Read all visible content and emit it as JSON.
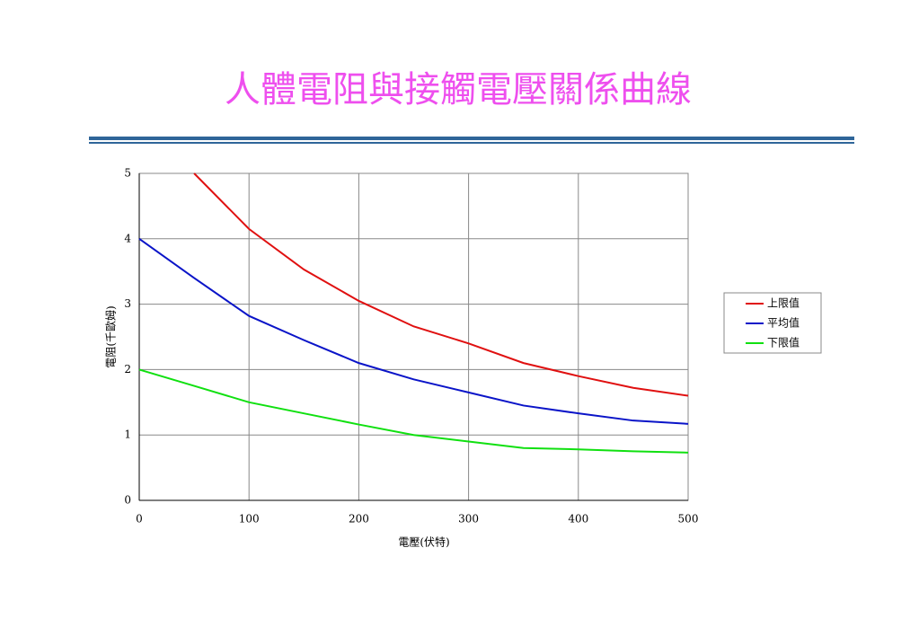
{
  "chart_data": {
    "type": "line",
    "title": "人體電阻與接觸電壓關係曲線",
    "x_label": "電壓(伏特)",
    "y_label": "電阻(千歐姆)",
    "x": [
      0,
      50,
      100,
      150,
      200,
      250,
      300,
      350,
      400,
      450,
      500
    ],
    "series": [
      {
        "name": "上限值",
        "color": "#e01010",
        "values": [
          null,
          5.0,
          4.15,
          3.53,
          3.05,
          2.66,
          2.4,
          2.1,
          1.9,
          1.72,
          1.6
        ]
      },
      {
        "name": "平均值",
        "color": "#0a14c8",
        "values": [
          4.0,
          3.4,
          2.82,
          2.45,
          2.1,
          1.85,
          1.65,
          1.45,
          1.33,
          1.22,
          1.17
        ]
      },
      {
        "name": "下限值",
        "color": "#10e010",
        "values": [
          2.0,
          1.75,
          1.5,
          1.33,
          1.16,
          1.0,
          0.9,
          0.8,
          0.78,
          0.75,
          0.73
        ]
      }
    ],
    "xlim": [
      0,
      500
    ],
    "xticks": [
      0,
      100,
      200,
      300,
      400,
      500
    ],
    "ylim": [
      0,
      5
    ],
    "yticks": [
      0,
      1,
      2,
      3,
      4,
      5
    ],
    "grid": true,
    "legend": "right"
  }
}
